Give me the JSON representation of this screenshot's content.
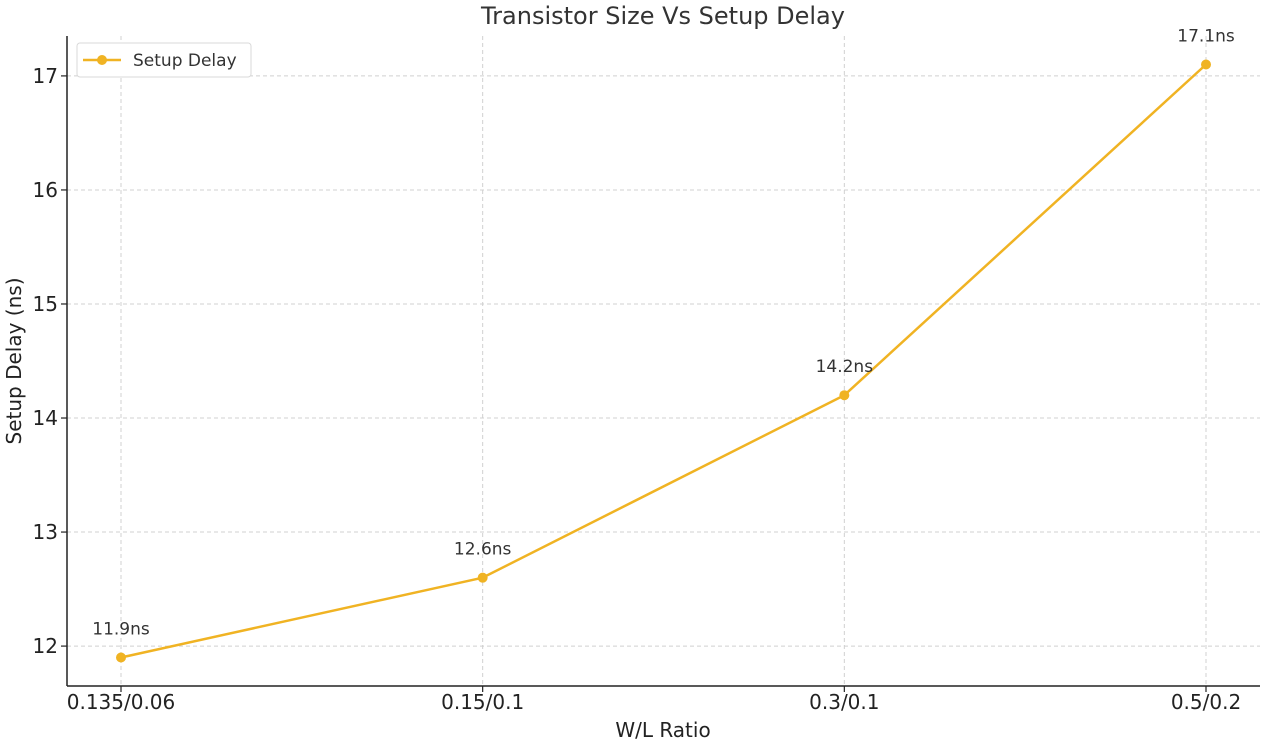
{
  "chart_data": {
    "type": "line",
    "title": "Transistor Size Vs Setup Delay",
    "xlabel": "W/L Ratio",
    "ylabel": "Setup Delay (ns)",
    "categories": [
      "0.135/0.06",
      "0.15/0.1",
      "0.3/0.1",
      "0.5/0.2"
    ],
    "series": [
      {
        "name": "Setup Delay",
        "values": [
          11.9,
          12.6,
          14.2,
          17.1
        ],
        "labels": [
          "11.9ns",
          "12.6ns",
          "14.2ns",
          "17.1ns"
        ],
        "color": "#f0b323"
      }
    ],
    "yticks": [
      12,
      13,
      14,
      15,
      16,
      17
    ],
    "ylim": [
      11.65,
      17.35
    ],
    "grid": true,
    "legend_position": "top-left"
  }
}
